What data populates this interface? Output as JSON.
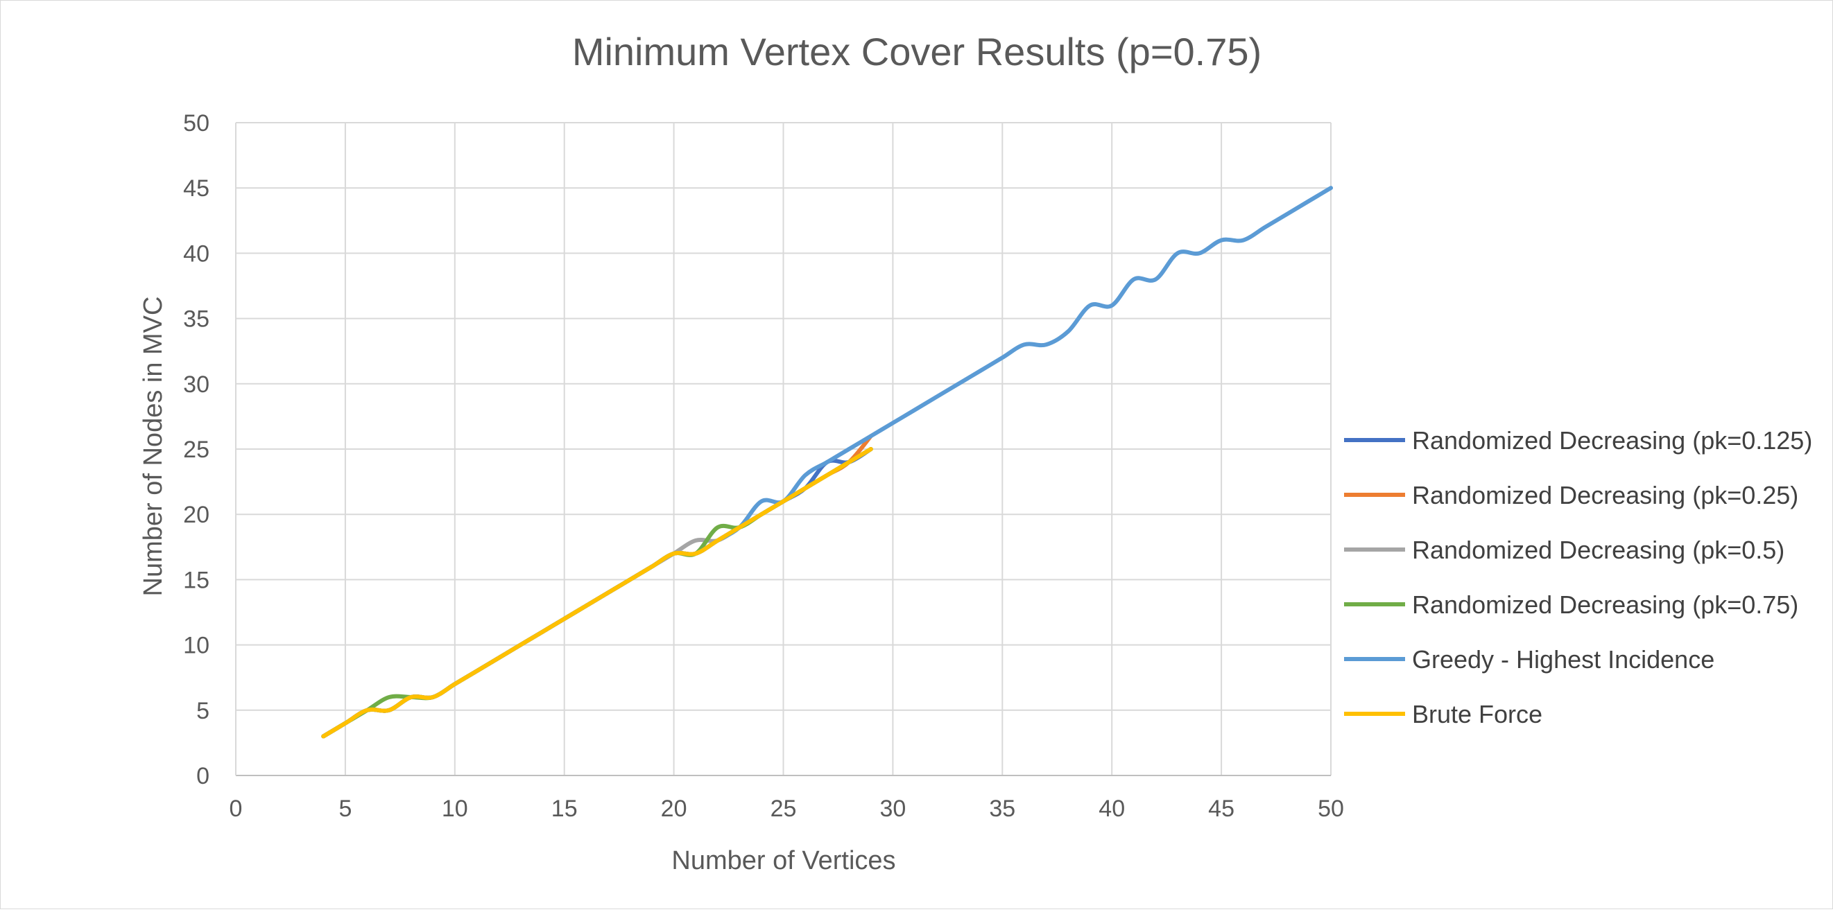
{
  "chart_data": {
    "type": "line",
    "title": "Minimum Vertex Cover Results (p=0.75)",
    "xlabel": "Number of Vertices",
    "ylabel": "Number of Nodes in MVC",
    "xlim": [
      0,
      50
    ],
    "ylim": [
      0,
      50
    ],
    "xticks": [
      0,
      5,
      10,
      15,
      20,
      25,
      30,
      35,
      40,
      45,
      50
    ],
    "yticks": [
      0,
      5,
      10,
      15,
      20,
      25,
      30,
      35,
      40,
      45,
      50
    ],
    "grid": true,
    "legend_position": "right",
    "smooth": true,
    "series": [
      {
        "name": "Randomized Decreasing (pk=0.125)",
        "color": "#4472C4",
        "x": [
          4,
          5,
          6,
          7,
          8,
          9,
          10,
          11,
          12,
          13,
          14,
          15,
          16,
          17,
          18,
          19,
          20,
          21,
          22,
          23,
          24,
          25,
          26,
          27,
          28,
          29
        ],
        "y": [
          3,
          4,
          5,
          5,
          6,
          6,
          7,
          8,
          9,
          10,
          11,
          12,
          13,
          14,
          15,
          16,
          17,
          17,
          18,
          19,
          20,
          21,
          22,
          24,
          24,
          25
        ]
      },
      {
        "name": "Randomized Decreasing (pk=0.25)",
        "color": "#ED7D31",
        "x": [
          4,
          5,
          6,
          7,
          8,
          9,
          10,
          11,
          12,
          13,
          14,
          15,
          16,
          17,
          18,
          19,
          20,
          21,
          22,
          23,
          24,
          25,
          26,
          27,
          28,
          29
        ],
        "y": [
          3,
          4,
          5,
          5,
          6,
          6,
          7,
          8,
          9,
          10,
          11,
          12,
          13,
          14,
          15,
          16,
          17,
          17,
          18,
          19,
          20,
          21,
          22,
          23,
          24,
          26
        ]
      },
      {
        "name": "Randomized Decreasing (pk=0.5)",
        "color": "#A5A5A5",
        "x": [
          4,
          5,
          6,
          7,
          8,
          9,
          10,
          11,
          12,
          13,
          14,
          15,
          16,
          17,
          18,
          19,
          20,
          21,
          22,
          23,
          24,
          25,
          26,
          27,
          28,
          29
        ],
        "y": [
          3,
          4,
          5,
          5,
          6,
          6,
          7,
          8,
          9,
          10,
          11,
          12,
          13,
          14,
          15,
          16,
          17,
          18,
          18,
          19,
          20,
          21,
          22,
          23,
          24,
          25
        ]
      },
      {
        "name": "Randomized Decreasing (pk=0.75)",
        "color": "#70AD47",
        "x": [
          4,
          5,
          6,
          7,
          8,
          9,
          10,
          11,
          12,
          13,
          14,
          15,
          16,
          17,
          18,
          19,
          20,
          21,
          22,
          23,
          24,
          25,
          26,
          27,
          28,
          29
        ],
        "y": [
          3,
          4,
          5,
          6,
          6,
          6,
          7,
          8,
          9,
          10,
          11,
          12,
          13,
          14,
          15,
          16,
          17,
          17,
          19,
          19,
          20,
          21,
          22,
          23,
          24,
          25
        ]
      },
      {
        "name": "Greedy - Highest Incidence",
        "color": "#5B9BD5",
        "x": [
          4,
          5,
          6,
          7,
          8,
          9,
          10,
          11,
          12,
          13,
          14,
          15,
          16,
          17,
          18,
          19,
          20,
          21,
          22,
          23,
          24,
          25,
          26,
          27,
          28,
          29,
          30,
          31,
          32,
          33,
          34,
          35,
          36,
          37,
          38,
          39,
          40,
          41,
          42,
          43,
          44,
          45,
          46,
          47,
          48,
          49,
          50
        ],
        "y": [
          3,
          4,
          5,
          5,
          6,
          6,
          7,
          8,
          9,
          10,
          11,
          12,
          13,
          14,
          15,
          16,
          17,
          17,
          18,
          19,
          21,
          21,
          23,
          24,
          25,
          26,
          27,
          28,
          29,
          30,
          31,
          32,
          33,
          33,
          34,
          36,
          36,
          38,
          38,
          40,
          40,
          41,
          41,
          42,
          43,
          44,
          45
        ]
      },
      {
        "name": "Brute Force",
        "color": "#FFC000",
        "x": [
          4,
          5,
          6,
          7,
          8,
          9,
          10,
          11,
          12,
          13,
          14,
          15,
          16,
          17,
          18,
          19,
          20,
          21,
          22,
          23,
          24,
          25,
          26,
          27,
          28,
          29
        ],
        "y": [
          3,
          4,
          5,
          5,
          6,
          6,
          7,
          8,
          9,
          10,
          11,
          12,
          13,
          14,
          15,
          16,
          17,
          17,
          18,
          19,
          20,
          21,
          22,
          23,
          24,
          25
        ]
      }
    ]
  }
}
